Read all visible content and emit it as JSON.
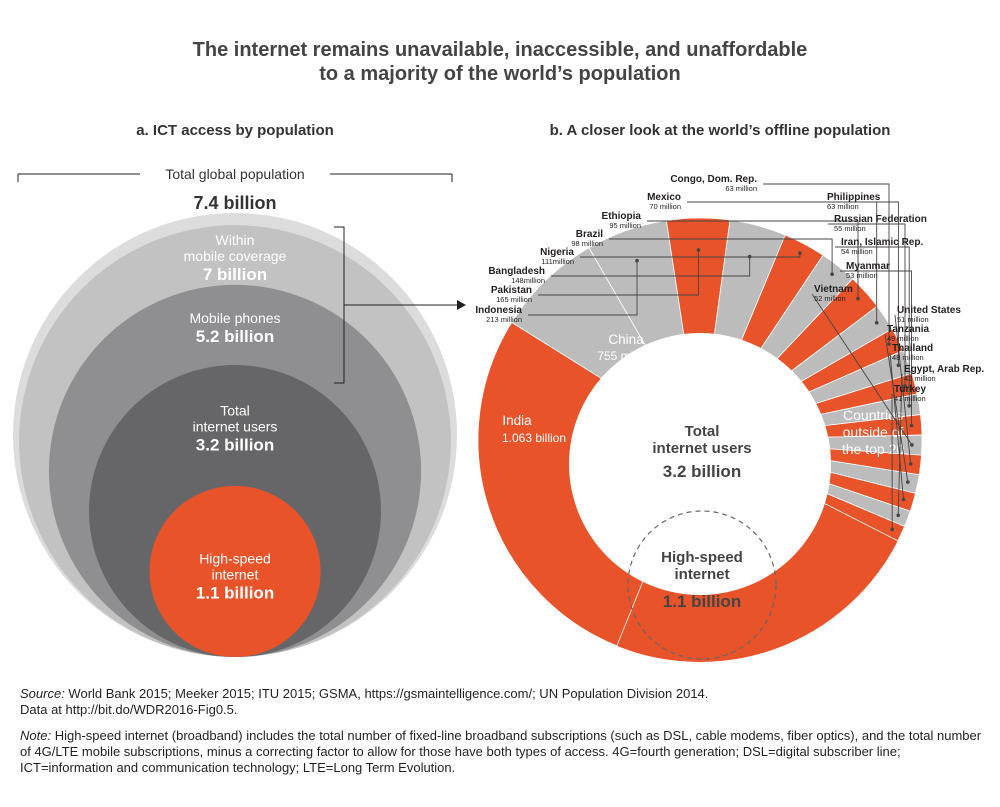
{
  "title": {
    "line1": "The internet remains unavailable, inaccessible, and unaffordable",
    "line2": "to a majority of the world’s population"
  },
  "colors": {
    "orange": "#e8532a",
    "gray_light": "#dcdcdc",
    "gray_mid": "#c2c2c3",
    "gray_dark": "#8f8f91",
    "gray_darker": "#666668",
    "china_gray": "#bcbcbd"
  },
  "chart_data": [
    {
      "type": "nested_circles",
      "title": "a. ICT access by population",
      "bracket_label": "Total global population",
      "total": {
        "label": "Total global population",
        "value_label": "7.4 billion",
        "value": 7.4
      },
      "levels": [
        {
          "name_lines": [
            "Within",
            "mobile coverage"
          ],
          "value_label": "7 billion",
          "value": 7.0
        },
        {
          "name_lines": [
            "Mobile phones"
          ],
          "value_label": "5.2 billion",
          "value": 5.2
        },
        {
          "name_lines": [
            "Total",
            "internet users"
          ],
          "value_label": "3.2 billion",
          "value": 3.2
        },
        {
          "name_lines": [
            "High-speed",
            "internet"
          ],
          "value_label": "1.1 billion",
          "value": 1.1
        }
      ]
    },
    {
      "type": "donut",
      "title": "b. A closer look at the world’s offline population",
      "unit": "million",
      "center": {
        "name_lines": [
          "Total",
          "internet users"
        ],
        "value_label": "3.2 billion",
        "inner_name_lines": [
          "High-speed",
          "internet"
        ],
        "inner_value_label": "1.1 billion"
      },
      "big_slices": [
        {
          "name": "India",
          "value_label": "1.063 billion",
          "value": 1063
        },
        {
          "name": "China",
          "value_label": "755 million",
          "value": 755
        }
      ],
      "countries": [
        {
          "name": "Indonesia",
          "value_label": "213 million",
          "value": 213
        },
        {
          "name": "Pakistan",
          "value_label": "165 million",
          "value": 165
        },
        {
          "name": "Bangladesh",
          "value_label": "148million",
          "value": 148
        },
        {
          "name": "Nigeria",
          "value_label": "111million",
          "value": 111
        },
        {
          "name": "Brazil",
          "value_label": "98 million",
          "value": 98
        },
        {
          "name": "Ethiopia",
          "value_label": "95 million",
          "value": 95
        },
        {
          "name": "Mexico",
          "value_label": "70 million",
          "value": 70
        },
        {
          "name": "Congo, Dom. Rep.",
          "value_label": "63 million",
          "value": 63
        },
        {
          "name": "Philippines",
          "value_label": "63 million",
          "value": 63
        },
        {
          "name": "Russian Federation",
          "value_label": "55 million",
          "value": 55
        },
        {
          "name": "Iran, Islamic Rep.",
          "value_label": "54 million",
          "value": 54
        },
        {
          "name": "Myanmar",
          "value_label": "53 million",
          "value": 53
        },
        {
          "name": "Vietnam",
          "value_label": "52 million",
          "value": 52
        },
        {
          "name": "United States",
          "value_label": "51 million",
          "value": 51
        },
        {
          "name": "Tanzania",
          "value_label": "49 million",
          "value": 49
        },
        {
          "name": "Thailand",
          "value_label": "48 million",
          "value": 48
        },
        {
          "name": "Egypt, Arab Rep.",
          "value_label": "42 million",
          "value": 42
        },
        {
          "name": "Turkey",
          "value_label": "41 million",
          "value": 41
        }
      ],
      "others": {
        "name_lines": [
          "Countries",
          "outside of",
          "the top 20"
        ]
      }
    }
  ],
  "footer": {
    "source_label": "Source:",
    "source_text": " World Bank 2015; Meeker 2015; ITU 2015; GSMA, https://gsmaintelligence.com/; UN Population Division 2014.",
    "data_text": "Data at http://bit.do/WDR2016-Fig0.5.",
    "note_label": "Note:",
    "note_text": " High-speed internet (broadband) includes the total number of fixed-line broadband subscriptions (such as DSL, cable modems, fiber optics), and the total number of 4G/LTE mobile subscriptions, minus a correcting factor to allow for those have both types of access. 4G=fourth generation; DSL=digital subscriber line; ICT=information and communication technology; LTE=Long Term Evolution."
  }
}
